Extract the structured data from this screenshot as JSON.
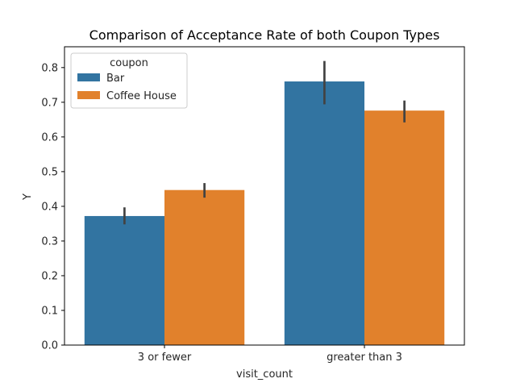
{
  "chart_data": {
    "type": "bar",
    "title": "Comparison of Acceptance Rate of both Coupon Types",
    "xlabel": "visit_count",
    "ylabel": "Y",
    "categories": [
      "3 or fewer",
      "greater than 3"
    ],
    "ylim": [
      0,
      0.86
    ],
    "yticks": [
      "0.0",
      "0.1",
      "0.2",
      "0.3",
      "0.4",
      "0.5",
      "0.6",
      "0.7",
      "0.8"
    ],
    "legend": {
      "title": "coupon",
      "placement": "upper-left"
    },
    "series": [
      {
        "name": "Bar",
        "color": "#3274a1",
        "values": [
          0.372,
          0.76
        ],
        "ci_low": [
          0.348,
          0.694
        ],
        "ci_high": [
          0.397,
          0.819
        ]
      },
      {
        "name": "Coffee House",
        "color": "#e1812c",
        "values": [
          0.447,
          0.676
        ],
        "ci_low": [
          0.425,
          0.642
        ],
        "ci_high": [
          0.467,
          0.705
        ]
      }
    ],
    "grid": false
  }
}
